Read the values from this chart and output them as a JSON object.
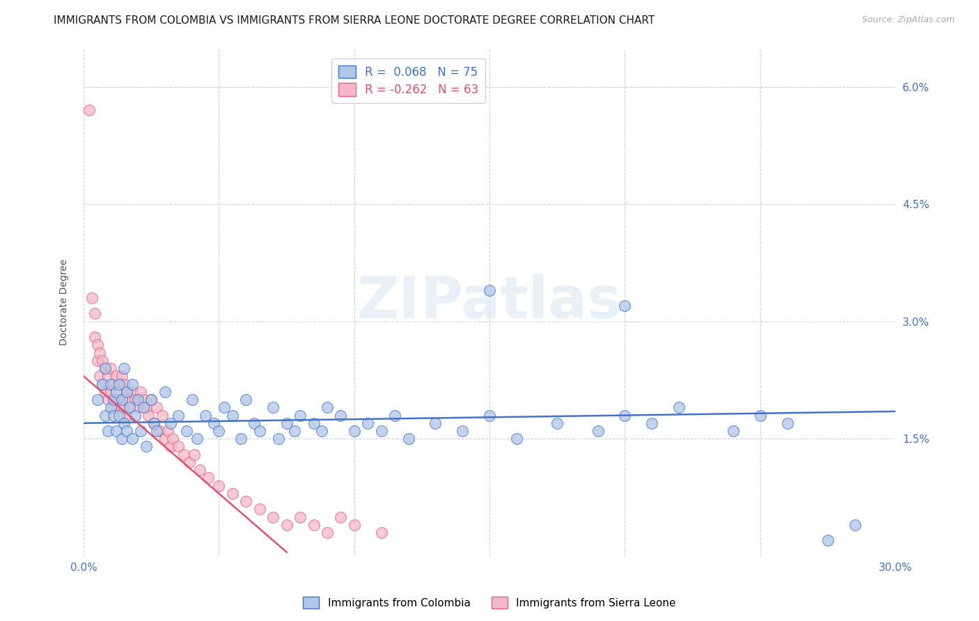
{
  "title": "IMMIGRANTS FROM COLOMBIA VS IMMIGRANTS FROM SIERRA LEONE DOCTORATE DEGREE CORRELATION CHART",
  "source": "Source: ZipAtlas.com",
  "ylabel": "Doctorate Degree",
  "xlim": [
    0.0,
    0.3
  ],
  "ylim": [
    0.0,
    0.065
  ],
  "xtick_positions": [
    0.0,
    0.05,
    0.1,
    0.15,
    0.2,
    0.25,
    0.3
  ],
  "xtick_labels": [
    "0.0%",
    "",
    "",
    "",
    "",
    "",
    "30.0%"
  ],
  "ytick_positions": [
    0.0,
    0.015,
    0.03,
    0.045,
    0.06
  ],
  "ytick_labels_right": [
    "",
    "1.5%",
    "3.0%",
    "4.5%",
    "6.0%"
  ],
  "colombia_R": 0.068,
  "colombia_N": 75,
  "sierraleone_R": -0.262,
  "sierraleone_N": 63,
  "colombia_color": "#aec6e8",
  "sierraleone_color": "#f5b8c8",
  "colombia_edge_color": "#4472c4",
  "sierraleone_edge_color": "#e06080",
  "colombia_line_color": "#4472c4",
  "sierraleone_line_color": "#e05070",
  "background_color": "#ffffff",
  "grid_color": "#d0d0e0",
  "watermark": "ZIPatlas",
  "title_fontsize": 11,
  "axis_label_fontsize": 10,
  "tick_fontsize": 11,
  "legend_fontsize": 12,
  "colombia_scatter_x": [
    0.005,
    0.007,
    0.008,
    0.008,
    0.009,
    0.01,
    0.01,
    0.011,
    0.011,
    0.012,
    0.012,
    0.013,
    0.013,
    0.014,
    0.014,
    0.015,
    0.015,
    0.016,
    0.016,
    0.017,
    0.018,
    0.018,
    0.019,
    0.02,
    0.021,
    0.022,
    0.023,
    0.025,
    0.026,
    0.027,
    0.03,
    0.032,
    0.035,
    0.038,
    0.04,
    0.042,
    0.045,
    0.048,
    0.05,
    0.052,
    0.055,
    0.058,
    0.06,
    0.063,
    0.065,
    0.07,
    0.072,
    0.075,
    0.078,
    0.08,
    0.085,
    0.088,
    0.09,
    0.095,
    0.1,
    0.105,
    0.11,
    0.115,
    0.12,
    0.13,
    0.14,
    0.15,
    0.16,
    0.175,
    0.19,
    0.2,
    0.21,
    0.22,
    0.24,
    0.25,
    0.26,
    0.275,
    0.285,
    0.2,
    0.15
  ],
  "colombia_scatter_y": [
    0.02,
    0.022,
    0.018,
    0.024,
    0.016,
    0.022,
    0.019,
    0.02,
    0.018,
    0.021,
    0.016,
    0.022,
    0.018,
    0.02,
    0.015,
    0.024,
    0.017,
    0.021,
    0.016,
    0.019,
    0.022,
    0.015,
    0.018,
    0.02,
    0.016,
    0.019,
    0.014,
    0.02,
    0.017,
    0.016,
    0.021,
    0.017,
    0.018,
    0.016,
    0.02,
    0.015,
    0.018,
    0.017,
    0.016,
    0.019,
    0.018,
    0.015,
    0.02,
    0.017,
    0.016,
    0.019,
    0.015,
    0.017,
    0.016,
    0.018,
    0.017,
    0.016,
    0.019,
    0.018,
    0.016,
    0.017,
    0.016,
    0.018,
    0.015,
    0.017,
    0.016,
    0.018,
    0.015,
    0.017,
    0.016,
    0.018,
    0.017,
    0.019,
    0.016,
    0.018,
    0.017,
    0.002,
    0.004,
    0.032,
    0.034
  ],
  "sierraleone_scatter_x": [
    0.002,
    0.003,
    0.004,
    0.004,
    0.005,
    0.005,
    0.006,
    0.006,
    0.007,
    0.007,
    0.008,
    0.008,
    0.009,
    0.009,
    0.01,
    0.01,
    0.011,
    0.011,
    0.012,
    0.012,
    0.013,
    0.013,
    0.014,
    0.014,
    0.015,
    0.015,
    0.016,
    0.016,
    0.017,
    0.018,
    0.019,
    0.02,
    0.021,
    0.022,
    0.023,
    0.024,
    0.025,
    0.026,
    0.027,
    0.028,
    0.029,
    0.03,
    0.031,
    0.032,
    0.033,
    0.035,
    0.037,
    0.039,
    0.041,
    0.043,
    0.046,
    0.05,
    0.055,
    0.06,
    0.065,
    0.07,
    0.075,
    0.08,
    0.085,
    0.09,
    0.095,
    0.1,
    0.11
  ],
  "sierraleone_scatter_y": [
    0.057,
    0.033,
    0.031,
    0.028,
    0.027,
    0.025,
    0.026,
    0.023,
    0.025,
    0.022,
    0.024,
    0.021,
    0.023,
    0.02,
    0.024,
    0.021,
    0.022,
    0.019,
    0.023,
    0.02,
    0.022,
    0.02,
    0.023,
    0.019,
    0.022,
    0.019,
    0.021,
    0.018,
    0.02,
    0.021,
    0.02,
    0.019,
    0.021,
    0.02,
    0.019,
    0.018,
    0.02,
    0.017,
    0.019,
    0.016,
    0.018,
    0.015,
    0.016,
    0.014,
    0.015,
    0.014,
    0.013,
    0.012,
    0.013,
    0.011,
    0.01,
    0.009,
    0.008,
    0.007,
    0.006,
    0.005,
    0.004,
    0.005,
    0.004,
    0.003,
    0.005,
    0.004,
    0.003
  ],
  "colombia_line_x": [
    0.0,
    0.3
  ],
  "colombia_line_y": [
    0.017,
    0.0185
  ],
  "sierraleone_line_x": [
    0.0,
    0.075
  ],
  "sierraleone_line_y": [
    0.023,
    0.0005
  ]
}
